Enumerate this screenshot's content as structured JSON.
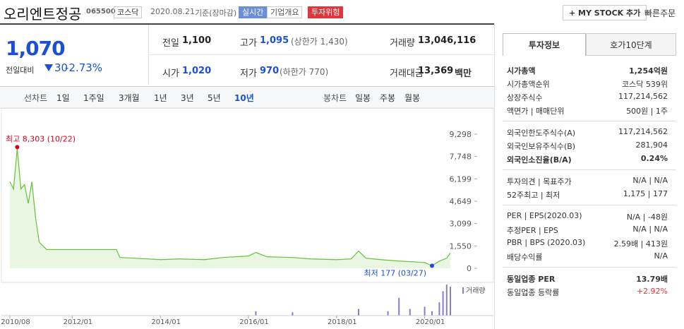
{
  "header": {
    "name": "오리엔트정공",
    "code": "065500",
    "market": "코스닥",
    "date": "2020.08.21",
    "basis": "기준(장마감)",
    "realtime": "실시간",
    "overview": "기업개요",
    "warning": "투자위험",
    "my_stock": "MY STOCK 추가",
    "quick_order": "빠른주문"
  },
  "price": {
    "current": "1,070",
    "change_label": "전일대비",
    "change": "30",
    "change_rate": "-2.73%",
    "stats": [
      {
        "label": "전일",
        "value": "1,100"
      },
      {
        "label": "고가",
        "value": "1,095",
        "note": "(상한가 1,430)"
      },
      {
        "label": "거래량",
        "value": "13,046,116"
      },
      {
        "label": "시가",
        "value": "1,020"
      },
      {
        "label": "저가",
        "value": "970",
        "note": "(하한가 770)"
      },
      {
        "label": "거래대금",
        "value": "13,369",
        "unit": "백만"
      }
    ]
  },
  "tabs": {
    "line_label": "선차트",
    "line": [
      "1일",
      "1주일",
      "3개월",
      "1년",
      "3년",
      "5년",
      "10년"
    ],
    "candle_label": "봉차트",
    "candle": [
      "일봉",
      "주봉",
      "월봉"
    ]
  },
  "chart_data": {
    "type": "line",
    "color": "#66c23a",
    "x": [
      "2010/08",
      "2010/09",
      "2010/10",
      "2010/11",
      "2010/12",
      "2011/01",
      "2011/02",
      "2011/03",
      "2011/04",
      "2011/06",
      "2012/01",
      "2012/06",
      "2013/01",
      "2013/02",
      "2013/06",
      "2014/01",
      "2014/06",
      "2015/01",
      "2015/06",
      "2016/01",
      "2016/03",
      "2016/06",
      "2017/01",
      "2017/06",
      "2018/01",
      "2018/05",
      "2018/07",
      "2018/09",
      "2019/01",
      "2019/06",
      "2020/01",
      "2020/03",
      "2020/05",
      "2020/07",
      "2020/08"
    ],
    "values": [
      6000,
      5500,
      8303,
      5500,
      5800,
      4500,
      6000,
      3500,
      1800,
      1300,
      1300,
      1300,
      1300,
      750,
      700,
      600,
      650,
      600,
      750,
      850,
      1100,
      800,
      750,
      650,
      600,
      650,
      1200,
      700,
      600,
      500,
      400,
      177,
      500,
      700,
      1070
    ],
    "ylim": [
      0,
      9298
    ],
    "yticks": [
      0,
      {
        "value": 1550,
        "label": "1,550"
      },
      {
        "value": 3099,
        "label": "3,099"
      },
      {
        "value": 4649,
        "label": "4,649"
      },
      {
        "value": 6199,
        "label": "6,199"
      },
      {
        "value": 7748,
        "label": "7,748"
      },
      {
        "value": 9298,
        "label": "9,298"
      }
    ],
    "xticks": [
      "2010/08",
      "2012/01",
      "2014/01",
      "2016/01",
      "2018/01",
      "2020/01"
    ],
    "annotations": {
      "high": "최고 8,303 (10/22)",
      "low": "최저 177 (03/27)"
    },
    "volume": {
      "name": "거래량",
      "color": "#8a7cc6",
      "x": [
        "2016/03",
        "2017/01",
        "2018/07",
        "2019/03",
        "2019/06",
        "2019/09",
        "2020/01",
        "2020/03",
        "2020/05",
        "2020/06",
        "2020/07",
        "2020/08"
      ],
      "values": [
        2,
        1.5,
        3,
        2,
        8,
        3,
        4,
        2,
        6,
        11,
        14,
        13
      ]
    }
  },
  "info": {
    "tabs": [
      "투자정보",
      "호가10단계"
    ],
    "groups": [
      [
        {
          "label": "시가총액",
          "value": "1,254억원",
          "bold": true
        },
        {
          "label": "시가총액순위",
          "value": "코스닥 539위"
        },
        {
          "label": "상장주식수",
          "value": "117,214,562"
        },
        {
          "label": "액면가 | 매매단위",
          "value": "500원 | 1주"
        }
      ],
      [
        {
          "label": "외국인한도주식수(A)",
          "value": "117,214,562"
        },
        {
          "label": "외국인보유주식수(B)",
          "value": "281,904"
        },
        {
          "label": "외국인소진율(B/A)",
          "value": "0.24%",
          "bold": true
        }
      ],
      [
        {
          "label": "투자의견 | 목표주가",
          "value": "N/A | N/A"
        },
        {
          "label": "52주최고 | 최저",
          "value": "1,175 | 177"
        }
      ],
      [
        {
          "label": "PER | EPS(2020.03)",
          "value": "N/A | -48원"
        },
        {
          "label": "추정PER | EPS",
          "value": "N/A | N/A"
        },
        {
          "label": "PBR | BPS (2020.03)",
          "value": "2.59배 | 413원"
        },
        {
          "label": "배당수익률",
          "value": "N/A"
        }
      ],
      [
        {
          "label": "동일업종 PER",
          "value": "13.79배",
          "bold": true
        },
        {
          "label": "동일업종 등락률",
          "value": "+2.92%",
          "red": true
        }
      ]
    ]
  }
}
